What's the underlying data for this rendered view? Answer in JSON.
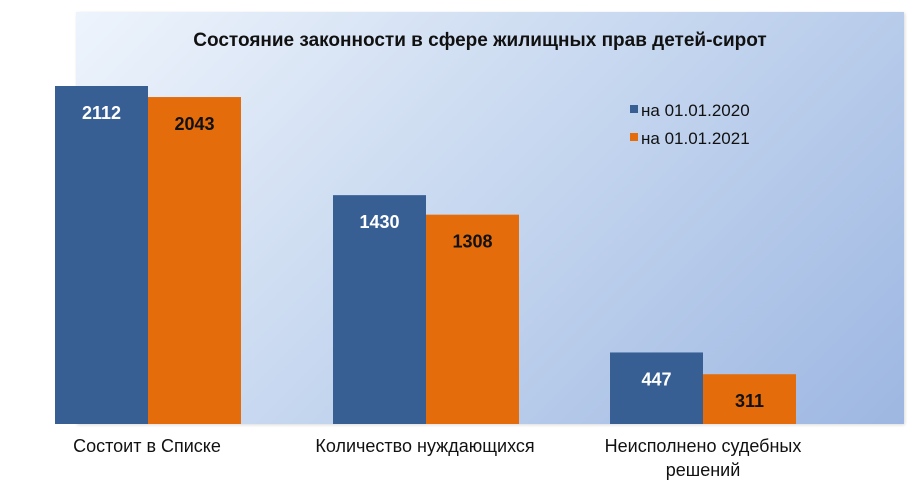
{
  "chart_data": {
    "type": "bar",
    "title": "Состояние законности в сфере жилищных прав детей-сирот",
    "categories": [
      [
        "Состоит в Списке"
      ],
      [
        "Количество нуждающихся"
      ],
      [
        "Неисполнено судебных",
        "решений"
      ]
    ],
    "series": [
      {
        "name": "на 01.01.2020",
        "values": [
          2112,
          1430,
          447
        ],
        "color": "#375f94",
        "label_color": "#ffffff"
      },
      {
        "name": "на 01.01.2021",
        "values": [
          2043,
          1308,
          311
        ],
        "color": "#e46c0a",
        "label_color": "#111111"
      }
    ],
    "ylim": [
      0,
      2112
    ],
    "legend_position": "top-right",
    "grid": false
  }
}
